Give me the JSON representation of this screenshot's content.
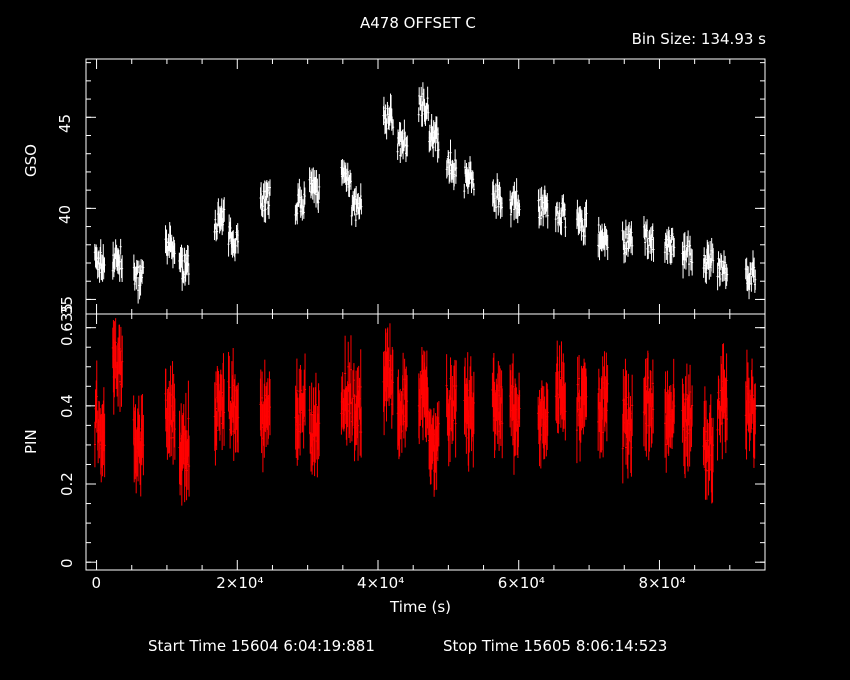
{
  "header": {
    "title": "A478 OFFSET C",
    "bin_size": "Bin Size: 134.93 s"
  },
  "footer": {
    "start_time": "Start Time 15604  6:04:19:881",
    "stop_time": "Stop Time 15605  8:06:14:523"
  },
  "colors": {
    "background": "#000000",
    "axes": "#ffffff",
    "gso_series": "#ffffff",
    "pin_series": "#ff0000"
  },
  "chart_data": [
    {
      "type": "scatter",
      "panel": "top",
      "xlabel": "",
      "ylabel": "GSO",
      "ytick_labels": [
        "35",
        "40",
        "45"
      ],
      "xlim": [
        -1500,
        95000
      ],
      "ylim": [
        34.2,
        48.2
      ],
      "grid": false,
      "series": [
        {
          "error_bars": true,
          "x": [
            500,
            3000,
            6000,
            10500,
            12500,
            17500,
            19500,
            24000,
            29000,
            31000,
            35500,
            37000,
            41500,
            43500,
            46500,
            48000,
            50500,
            53000,
            57000,
            59500,
            63500,
            66000,
            69000,
            72000,
            75500,
            78500,
            81500,
            84000,
            87000,
            89000,
            93000
          ],
          "y": [
            37.0,
            37.2,
            36.2,
            37.8,
            36.8,
            39.3,
            38.4,
            40.5,
            40.3,
            41.0,
            41.8,
            40.0,
            45.0,
            43.5,
            45.7,
            43.8,
            42.4,
            41.6,
            40.7,
            40.3,
            40.1,
            39.6,
            39.1,
            38.4,
            38.2,
            38.3,
            38.0,
            37.6,
            37.0,
            36.8,
            36.3
          ]
        }
      ]
    },
    {
      "type": "scatter",
      "panel": "bottom",
      "xlabel": "Time (s)",
      "ylabel": "PIN",
      "xtick_labels": [
        "0",
        "2×10⁴",
        "4×10⁴",
        "6×10⁴",
        "8×10⁴"
      ],
      "ytick_labels": [
        "0",
        "0.2",
        "0.4",
        "0.635"
      ],
      "xlim": [
        -1500,
        95000
      ],
      "ylim": [
        -0.02,
        0.635
      ],
      "grid": false,
      "series": [
        {
          "error_bars": true,
          "x": [
            500,
            3000,
            6000,
            10500,
            12500,
            17500,
            19500,
            24000,
            29000,
            31000,
            35500,
            37000,
            41500,
            43500,
            46500,
            48000,
            50500,
            53000,
            57000,
            59500,
            63500,
            66000,
            69000,
            72000,
            75500,
            78500,
            81500,
            84000,
            87000,
            89000,
            93000
          ],
          "y": [
            0.36,
            0.5,
            0.3,
            0.37,
            0.3,
            0.4,
            0.4,
            0.36,
            0.38,
            0.34,
            0.44,
            0.4,
            0.46,
            0.4,
            0.45,
            0.3,
            0.4,
            0.38,
            0.39,
            0.38,
            0.36,
            0.44,
            0.4,
            0.4,
            0.36,
            0.41,
            0.37,
            0.38,
            0.3,
            0.4,
            0.4
          ]
        }
      ]
    }
  ]
}
